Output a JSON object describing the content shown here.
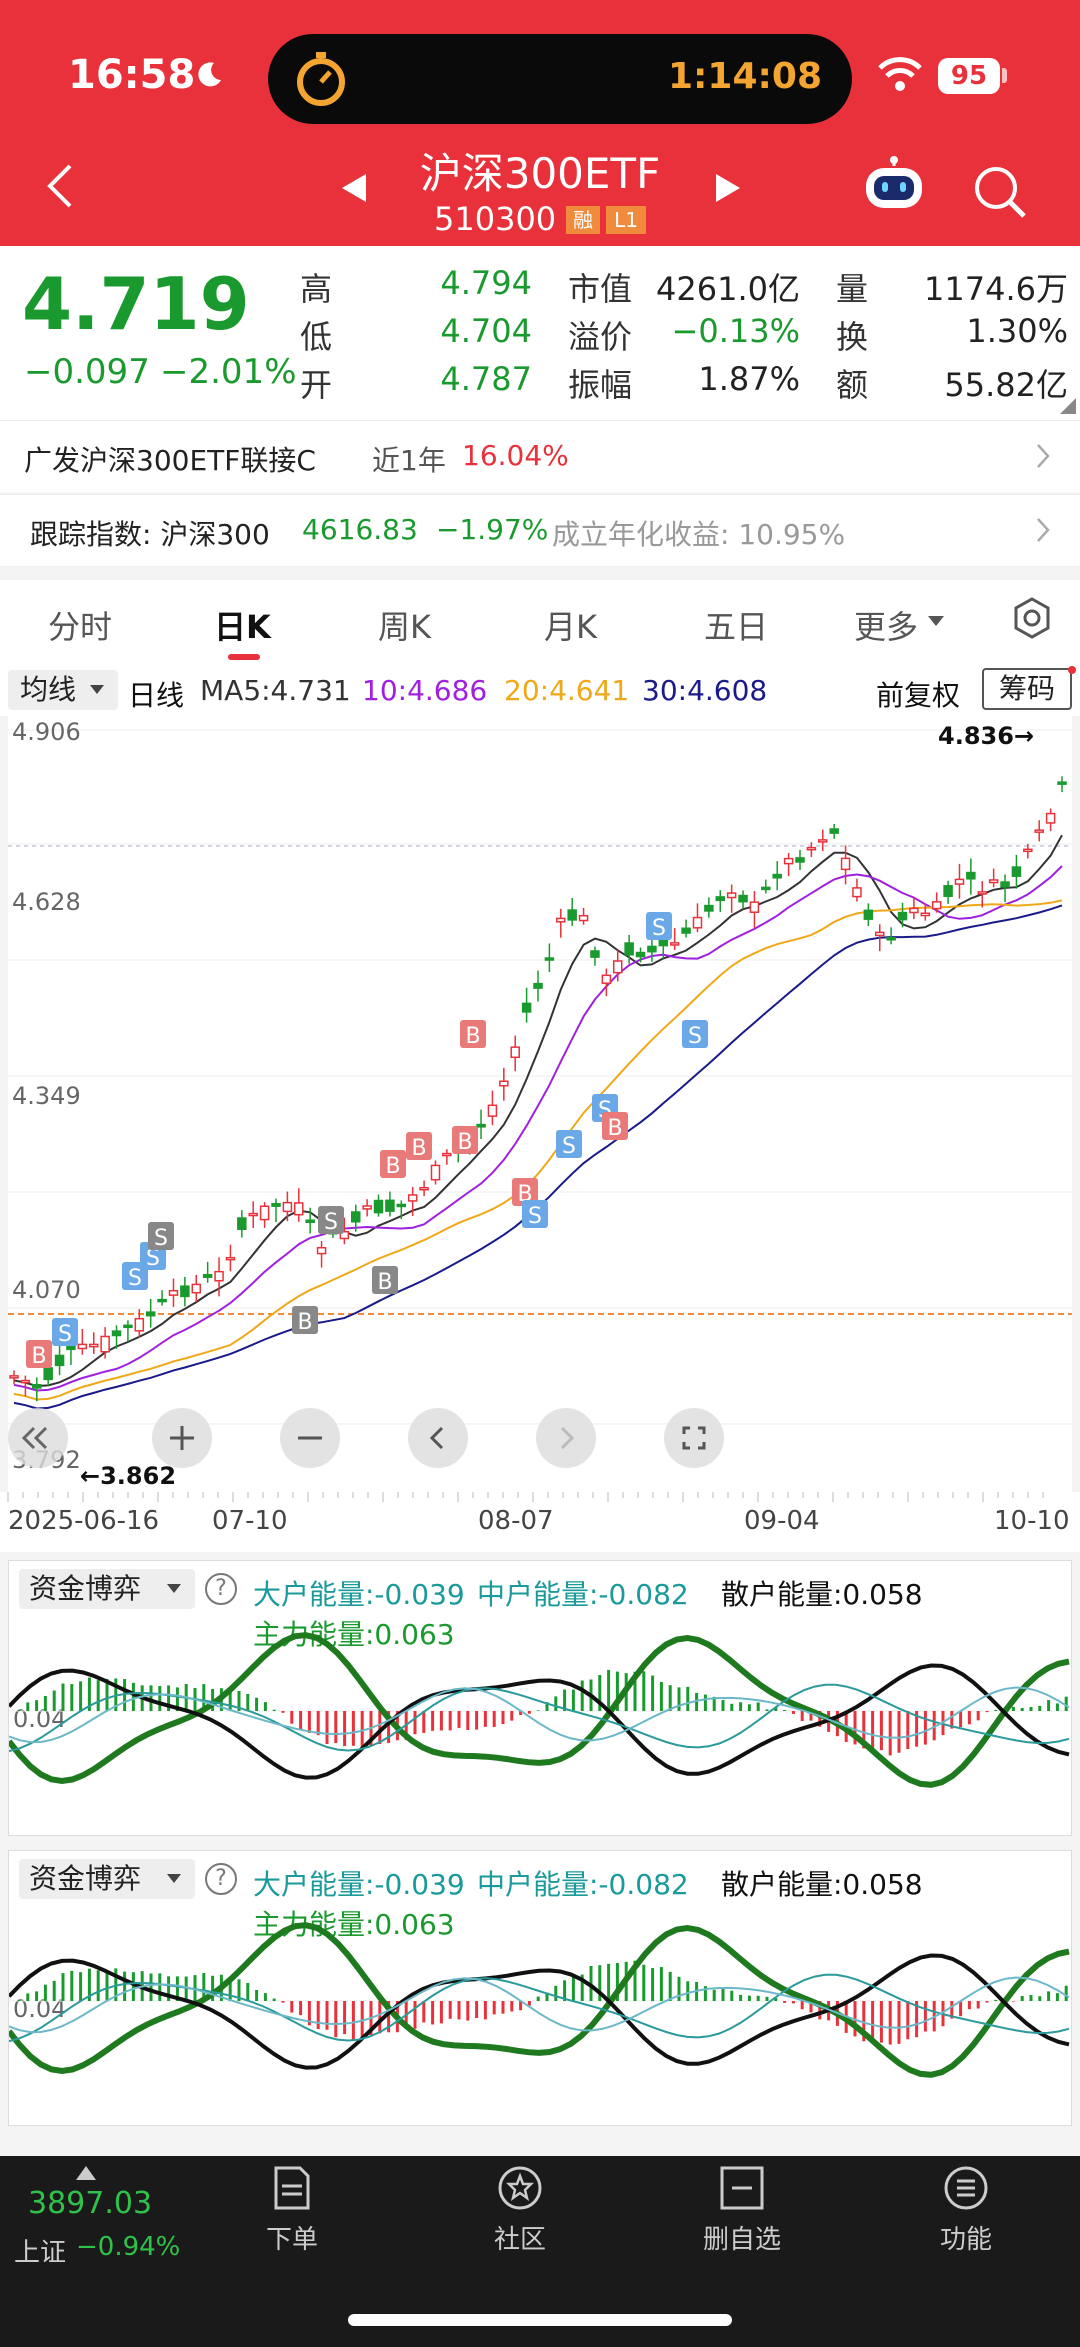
{
  "status": {
    "time": "16:58",
    "timer": "1:14:08",
    "battery": "95"
  },
  "header": {
    "name": "沪深300ETF",
    "code": "510300",
    "tag1": "融",
    "tag2": "L1"
  },
  "quote": {
    "price": "4.719",
    "change": "−0.097",
    "change_pct": "−2.01%",
    "items": [
      {
        "label": "高",
        "value": "4.794"
      },
      {
        "label": "低",
        "value": "4.704"
      },
      {
        "label": "开",
        "value": "4.787"
      },
      {
        "label": "市值",
        "value": "4261.0亿"
      },
      {
        "label": "溢价",
        "value": "−0.13%"
      },
      {
        "label": "振幅",
        "value": "1.87%"
      },
      {
        "label": "量",
        "value": "1174.6万"
      },
      {
        "label": "换",
        "value": "1.30%"
      },
      {
        "label": "额",
        "value": "55.82亿"
      }
    ]
  },
  "fund": {
    "name": "广发沪深300ETF联接C",
    "period": "近1年",
    "ret": "16.04%"
  },
  "track": {
    "label": "跟踪指数: 沪深300",
    "value": "4616.83",
    "pct": "−1.97%",
    "annual": "成立年化收益: 10.95%"
  },
  "tabs": [
    "分时",
    "日K",
    "周K",
    "月K",
    "五日",
    "更多"
  ],
  "ma": {
    "select": "均线",
    "line": "日线",
    "ma5": "MA5:4.731",
    "ma10": "10:4.686",
    "ma20": "20:4.641",
    "ma30": "30:4.608",
    "fq": "前复权",
    "chip": "筹码"
  },
  "chart_data": {
    "type": "candlestick",
    "y_labels": [
      "4.906",
      "4.628",
      "4.349",
      "4.070",
      "3.792"
    ],
    "high_label": "4.836→",
    "low_label": "←3.862",
    "x_labels": [
      "2025-06-16",
      "07-10",
      "08-07",
      "09-04",
      "10-10"
    ],
    "ylim": [
      3.792,
      4.906
    ]
  },
  "ind": {
    "select": "资金博弈",
    "big": "大户能量:-0.039",
    "mid": "中户能量:-0.082",
    "retail": "散户能量:0.058",
    "main": "主力能量:0.063",
    "zero": "0.04"
  },
  "bottom": {
    "index_value": "3897.03",
    "index_name": "上证",
    "index_pct": "−0.94%",
    "nav": [
      "下单",
      "社区",
      "删自选",
      "功能"
    ]
  },
  "colors": {
    "red": "#e8313a",
    "green": "#1a9a2e",
    "ma5": "#333333",
    "ma10": "#a020e0",
    "ma20": "#f0a818",
    "ma30": "#1a1a8a"
  }
}
